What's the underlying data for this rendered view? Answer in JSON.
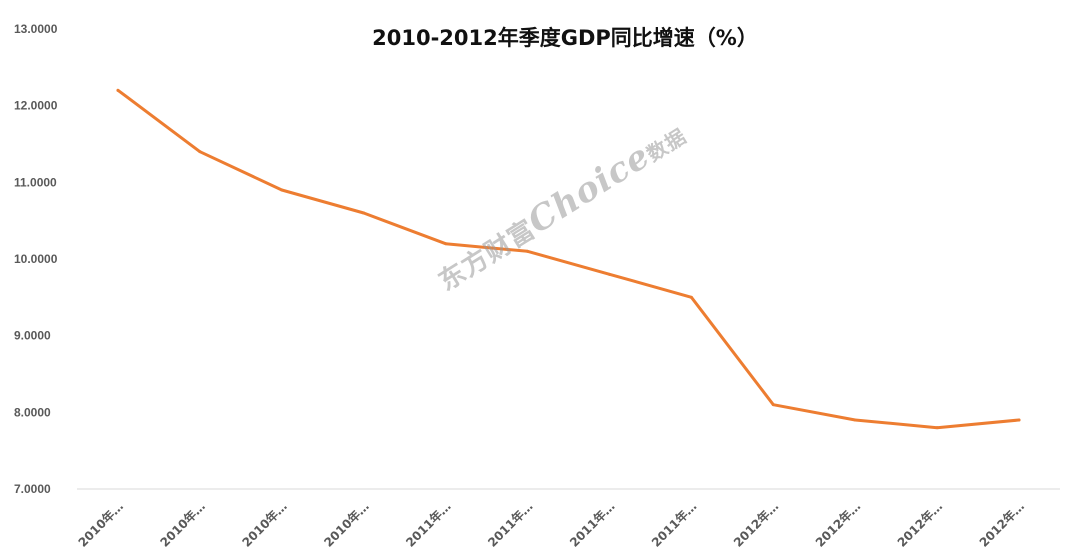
{
  "chart_data": {
    "type": "line",
    "title": "2010-2012年季度GDP同比增速（%）",
    "xlabel": "",
    "ylabel": "",
    "categories": [
      "2010年…",
      "2010年…",
      "2010年…",
      "2010年…",
      "2011年…",
      "2011年…",
      "2011年…",
      "2011年…",
      "2012年…",
      "2012年…",
      "2012年…",
      "2012年…"
    ],
    "series": [
      {
        "values": [
          12.2,
          11.4,
          10.9,
          10.6,
          10.2,
          10.1,
          9.8,
          9.5,
          8.1,
          7.9,
          7.8,
          7.9
        ]
      }
    ],
    "yticks": [
      "7.0000",
      "8.0000",
      "9.0000",
      "10.0000",
      "11.0000",
      "12.0000",
      "13.0000"
    ],
    "ylim": [
      7,
      13
    ],
    "grid": false,
    "legend": "none",
    "line_color": "#ed7d31",
    "axis_color": "#d9d9d9",
    "text_color": "#595959"
  },
  "watermark": {
    "prefix": "东方财富",
    "brand": "Choice",
    "suffix": "数据"
  }
}
